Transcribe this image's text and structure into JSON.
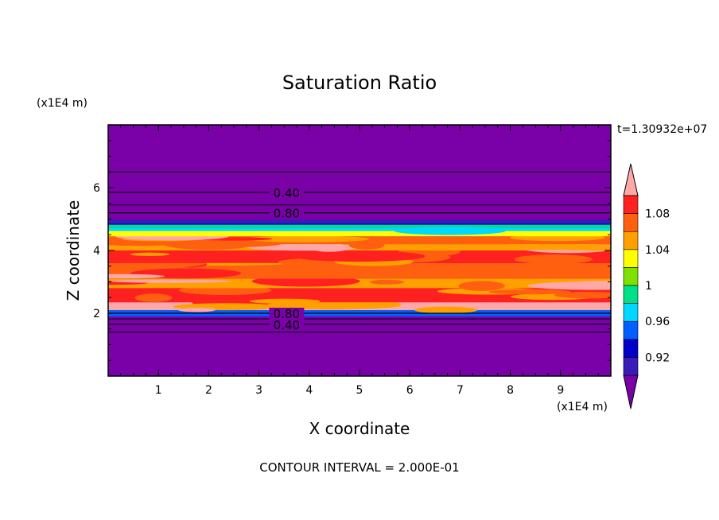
{
  "chart_data": {
    "type": "heatmap",
    "title": "Saturation Ratio",
    "xlabel": "X coordinate",
    "ylabel": "Z coordinate",
    "x_unit": "(x1E4 m)",
    "y_unit": "(x1E4 m)",
    "time_label": "t=1.30932e+07",
    "footer": "CONTOUR INTERVAL = 2.000E-01",
    "xlim": [
      0,
      10
    ],
    "ylim": [
      0,
      8
    ],
    "x_ticks": [
      "1",
      "2",
      "3",
      "4",
      "5",
      "6",
      "7",
      "8",
      "9"
    ],
    "y_ticks": [
      "2",
      "4",
      "6"
    ],
    "colorbar": {
      "levels": [
        0.9,
        0.92,
        0.94,
        0.96,
        0.98,
        1.0,
        1.02,
        1.04,
        1.06,
        1.08,
        1.1
      ],
      "labels": [
        "0.92",
        "0.96",
        "1",
        "1.04",
        "1.08"
      ],
      "colors": [
        "#7a00a8",
        "#3a1ab8",
        "#0000c8",
        "#0060ff",
        "#00d8ff",
        "#00e08a",
        "#80e000",
        "#ffff00",
        "#ffa000",
        "#ff6010",
        "#ff2020",
        "#ffa8a8"
      ]
    },
    "contour_lines": [
      {
        "level": "0.40",
        "z": 5.85
      },
      {
        "level": "0.80",
        "z": 5.2
      },
      {
        "level": "0.80",
        "z": 2.0
      },
      {
        "level": "0.40",
        "z": 1.65
      }
    ],
    "regions": [
      {
        "z_range": [
          0,
          1.9
        ],
        "saturation": "<0.90"
      },
      {
        "z_range": [
          1.9,
          2.1
        ],
        "saturation": "0.90-1.00"
      },
      {
        "z_range": [
          2.1,
          4.6
        ],
        "saturation": "1.04-1.10"
      },
      {
        "z_range": [
          4.6,
          4.95
        ],
        "saturation": "0.92-1.04"
      },
      {
        "z_range": [
          4.95,
          8.0
        ],
        "saturation": "<0.90"
      }
    ]
  }
}
